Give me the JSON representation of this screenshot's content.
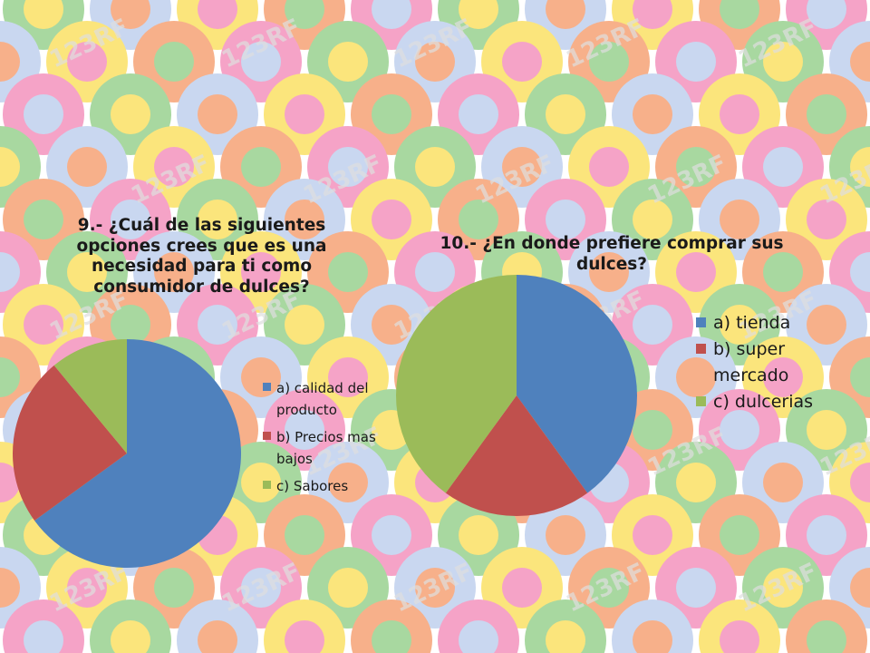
{
  "colors": {
    "pattern": [
      "#f5a3c7",
      "#a8d8a0",
      "#c9d7f0",
      "#fbe57c",
      "#f7b08a"
    ],
    "watermark": "#dfdfdf"
  },
  "watermark_text": "123RF",
  "chart_data": [
    {
      "type": "pie",
      "title": "9.- ¿Cuál de las siguientes opciones crees que es una necesidad para ti como consumidor de dulces?",
      "categories": [
        "a) calidad del producto",
        "b) Precios mas bajos",
        "c) Sabores"
      ],
      "values": [
        65,
        24,
        11
      ],
      "colors": [
        "#4f81bd",
        "#c0504d",
        "#9bbb59"
      ],
      "legend": "right"
    },
    {
      "type": "pie",
      "title": "10.- ¿En donde prefiere comprar sus dulces?",
      "categories": [
        "a) tienda",
        "b) super mercado",
        "c) dulcerias"
      ],
      "values": [
        40,
        20,
        40
      ],
      "colors": [
        "#4f81bd",
        "#c0504d",
        "#9bbb59"
      ],
      "legend": "right"
    }
  ]
}
